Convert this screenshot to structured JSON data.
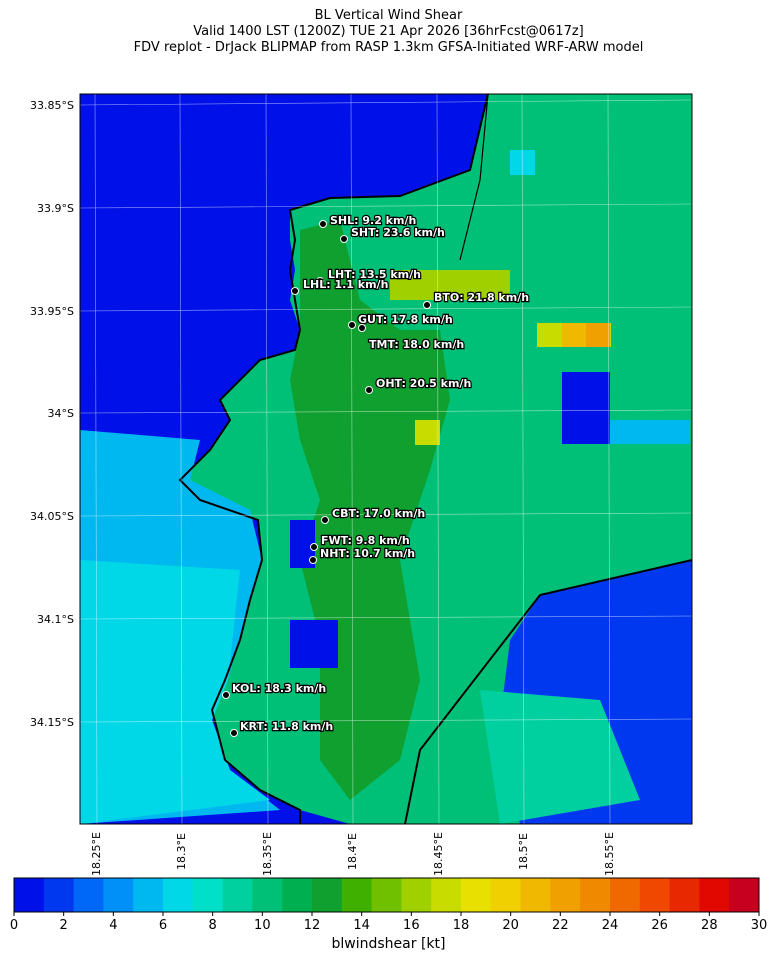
{
  "titles": {
    "line1": "BL Vertical Wind Shear",
    "line2": "Valid 1400 LST (1200Z) TUE 21 Apr 2026 [36hrFcst@0617z]",
    "line3": "FDV replot - DrJack BLIPMAP from RASP 1.3km GFSA-Initiated WRF-ARW model"
  },
  "lat_ticks": [
    "33.85°S",
    "33.9°S",
    "33.95°S",
    "34°S",
    "34.05°S",
    "34.1°S",
    "34.15°S"
  ],
  "lon_ticks": [
    "18.25°E",
    "18.3°E",
    "18.35°E",
    "18.4°E",
    "18.45°E",
    "18.5°E",
    "18.55°E"
  ],
  "stations": [
    {
      "label": "SHL: 9.2 km/h"
    },
    {
      "label": "SHT: 23.6 km/h"
    },
    {
      "label": "LHT: 13.5 km/h"
    },
    {
      "label": "LHL: 1.1 km/h"
    },
    {
      "label": "BTO: 21.8 km/h"
    },
    {
      "label": "GUT: 17.8 km/h"
    },
    {
      "label": "TMT: 18.0 km/h"
    },
    {
      "label": "OHT: 20.5 km/h"
    },
    {
      "label": "CBT: 17.0 km/h"
    },
    {
      "label": "FWT: 9.8 km/h"
    },
    {
      "label": "NHT: 10.7 km/h"
    },
    {
      "label": "KOL: 18.3 km/h"
    },
    {
      "label": "KRT: 11.8 km/h"
    }
  ],
  "colorbar": {
    "ticks": [
      "0",
      "2",
      "4",
      "6",
      "8",
      "10",
      "12",
      "14",
      "16",
      "18",
      "20",
      "22",
      "24",
      "26",
      "28",
      "30"
    ],
    "label": "blwindshear [kt]",
    "colors": [
      "#0010e8",
      "#0038f0",
      "#0068f8",
      "#0090f8",
      "#00b8f0",
      "#00d8e8",
      "#00e0c8",
      "#00d0a0",
      "#00c078",
      "#00b050",
      "#10a030",
      "#40b000",
      "#70c000",
      "#a0d000",
      "#c8dc00",
      "#e8e000",
      "#f0d000",
      "#f0b800",
      "#f0a000",
      "#f08800",
      "#f06800",
      "#f04800",
      "#e82800",
      "#e00800",
      "#c80020"
    ]
  }
}
